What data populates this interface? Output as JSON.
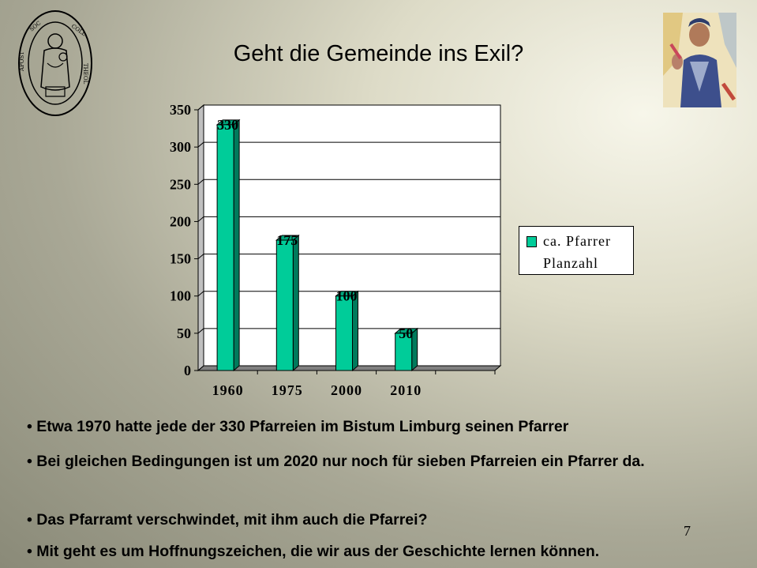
{
  "slide": {
    "title": "Geht die Gemeinde ins Exil?",
    "page_number": "7"
  },
  "chart_data": {
    "type": "bar",
    "categories": [
      "1960",
      "1975",
      "2000",
      "2010",
      ""
    ],
    "series": [
      {
        "name": "ca. Pfarrer Planzahl",
        "values": [
          330,
          175,
          100,
          50,
          null
        ],
        "color": "#00cc99"
      }
    ],
    "data_labels": [
      "330",
      "175",
      "100",
      "50"
    ],
    "yticks": [
      "0",
      "50",
      "100",
      "150",
      "200",
      "250",
      "300",
      "350"
    ],
    "ylim": [
      0,
      350
    ],
    "grid": true,
    "legend_position": "right",
    "legend_lines": [
      "ca. Pfarrer",
      "Planzahl"
    ]
  },
  "bullets": [
    "• Etwa 1970 hatte jede der 330 Pfarreien im Bistum Limburg seinen Pfarrer",
    "• Bei gleichen Bedingungen ist um 2020 nur noch für sieben Pfarreien ein Pfarrer da.",
    "• Das Pfarramt verschwindet, mit ihm auch die Pfarrei?",
    "• Mit geht es um Hoffnungszeichen, die wir aus der Geschichte lernen können."
  ],
  "seal_text": "+ COLLEGIUM THEOLOGICUM SOC. APOSTOLATUS CATH."
}
